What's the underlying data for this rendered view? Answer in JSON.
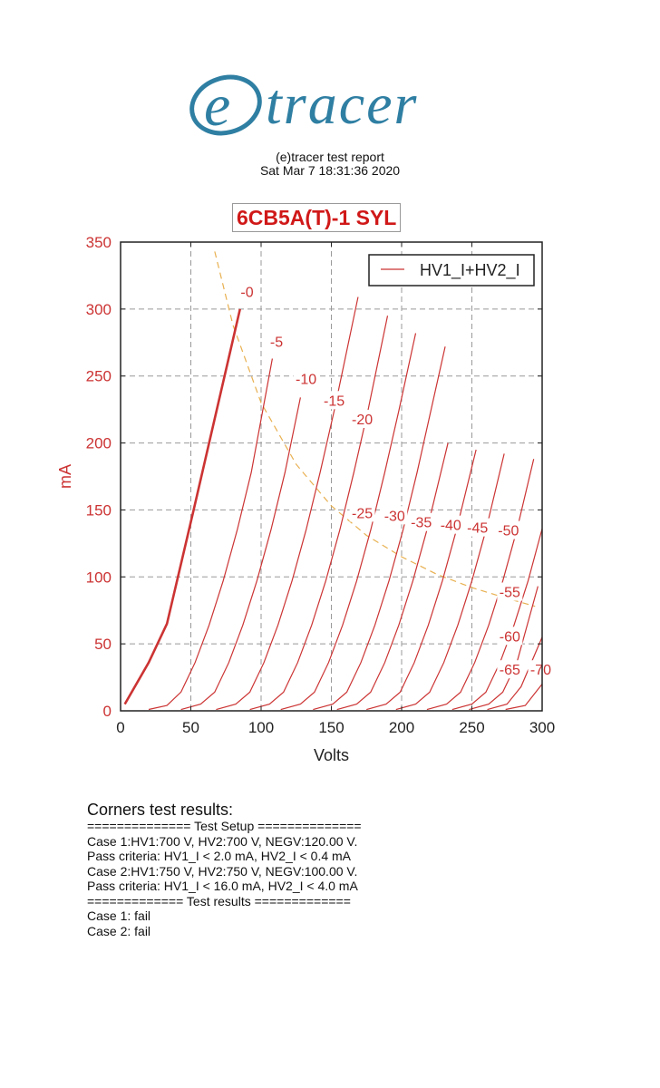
{
  "logo": {
    "text": "(e)tracer",
    "color": "#2f7fa3"
  },
  "header": {
    "line1": "(e)tracer test report",
    "line2": "Sat Mar 7 18:31:36 2020"
  },
  "tube_name": "6CB5A(T)-1 SYL",
  "chart_data": {
    "type": "line",
    "title": "6CB5A(T)-1 SYL",
    "xlabel": "Volts",
    "ylabel": "mA",
    "xlim": [
      0,
      300
    ],
    "ylim": [
      0,
      350
    ],
    "xticks": [
      0,
      50,
      100,
      150,
      200,
      250,
      300
    ],
    "yticks": [
      0,
      50,
      100,
      150,
      200,
      250,
      300,
      350
    ],
    "grid": true,
    "legend": {
      "placement": "top-right",
      "entries": [
        "HV1_I+HV2_I"
      ]
    },
    "colors": {
      "curve": "#cc3333",
      "power_limit": "#e8b050",
      "tick_labels": "#cc3333",
      "grid": "#999999"
    },
    "series": [
      {
        "label": "-0",
        "bold": true,
        "label_at": [
          90,
          313
        ],
        "points": [
          [
            3,
            5
          ],
          [
            20,
            36
          ],
          [
            33,
            65
          ],
          [
            52,
            150
          ],
          [
            85,
            300
          ]
        ]
      },
      {
        "label": "-5",
        "label_at": [
          111,
          276
        ],
        "points": [
          [
            20,
            1
          ],
          [
            33,
            4
          ],
          [
            43,
            14
          ],
          [
            53,
            36
          ],
          [
            63,
            64
          ],
          [
            73,
            97
          ],
          [
            83,
            135
          ],
          [
            93,
            178
          ],
          [
            108,
            263
          ]
        ]
      },
      {
        "label": "-10",
        "label_at": [
          132,
          248
        ],
        "points": [
          [
            43,
            1
          ],
          [
            57,
            5
          ],
          [
            67,
            14
          ],
          [
            77,
            36
          ],
          [
            87,
            64
          ],
          [
            97,
            97
          ],
          [
            107,
            135
          ],
          [
            117,
            178
          ],
          [
            128,
            234
          ]
        ]
      },
      {
        "label": "-15",
        "label_at": [
          152,
          232
        ],
        "points": [
          [
            68,
            1
          ],
          [
            82,
            5
          ],
          [
            92,
            14
          ],
          [
            102,
            36
          ],
          [
            112,
            64
          ],
          [
            122,
            97
          ],
          [
            132,
            135
          ],
          [
            142,
            178
          ],
          [
            152,
            224
          ],
          [
            169,
            309
          ]
        ]
      },
      {
        "label": "-20",
        "label_at": [
          172,
          218
        ],
        "points": [
          [
            92,
            1
          ],
          [
            106,
            5
          ],
          [
            116,
            14
          ],
          [
            126,
            36
          ],
          [
            136,
            64
          ],
          [
            146,
            97
          ],
          [
            156,
            135
          ],
          [
            166,
            178
          ],
          [
            176,
            224
          ],
          [
            190,
            295
          ]
        ]
      },
      {
        "label": "-25",
        "label_at": [
          172,
          148
        ],
        "points": [
          [
            114,
            1
          ],
          [
            128,
            5
          ],
          [
            138,
            14
          ],
          [
            148,
            36
          ],
          [
            158,
            64
          ],
          [
            168,
            97
          ],
          [
            178,
            135
          ],
          [
            188,
            178
          ],
          [
            198,
            224
          ],
          [
            210,
            282
          ]
        ]
      },
      {
        "label": "-30",
        "label_at": [
          195,
          146
        ],
        "points": [
          [
            137,
            1
          ],
          [
            151,
            5
          ],
          [
            161,
            14
          ],
          [
            171,
            36
          ],
          [
            181,
            64
          ],
          [
            191,
            97
          ],
          [
            201,
            135
          ],
          [
            211,
            178
          ],
          [
            231,
            272
          ]
        ]
      },
      {
        "label": "-35",
        "label_at": [
          214,
          141
        ],
        "points": [
          [
            154,
            1
          ],
          [
            168,
            5
          ],
          [
            178,
            14
          ],
          [
            188,
            36
          ],
          [
            198,
            64
          ],
          [
            208,
            97
          ],
          [
            218,
            135
          ],
          [
            233,
            200
          ]
        ]
      },
      {
        "label": "-40",
        "label_at": [
          235,
          139
        ],
        "points": [
          [
            175,
            1
          ],
          [
            189,
            5
          ],
          [
            199,
            14
          ],
          [
            209,
            36
          ],
          [
            219,
            64
          ],
          [
            229,
            97
          ],
          [
            239,
            135
          ],
          [
            253,
            195
          ]
        ]
      },
      {
        "label": "-45",
        "label_at": [
          254,
          137
        ],
        "points": [
          [
            196,
            1
          ],
          [
            210,
            5
          ],
          [
            220,
            14
          ],
          [
            230,
            36
          ],
          [
            240,
            64
          ],
          [
            250,
            97
          ],
          [
            260,
            135
          ],
          [
            273,
            192
          ]
        ]
      },
      {
        "label": "-50",
        "label_at": [
          276,
          135
        ],
        "points": [
          [
            218,
            1
          ],
          [
            232,
            5
          ],
          [
            242,
            14
          ],
          [
            252,
            36
          ],
          [
            262,
            64
          ],
          [
            272,
            97
          ],
          [
            282,
            135
          ],
          [
            294,
            188
          ]
        ]
      },
      {
        "label": "-55",
        "label_at": [
          277,
          89
        ],
        "points": [
          [
            236,
            1
          ],
          [
            250,
            5
          ],
          [
            260,
            14
          ],
          [
            270,
            36
          ],
          [
            280,
            64
          ],
          [
            290,
            97
          ],
          [
            300,
            136
          ]
        ]
      },
      {
        "label": "-60",
        "label_at": [
          277,
          56
        ],
        "points": [
          [
            248,
            1
          ],
          [
            262,
            5
          ],
          [
            272,
            14
          ],
          [
            282,
            36
          ],
          [
            297,
            93
          ]
        ]
      },
      {
        "label": "-65",
        "label_at": [
          277,
          31
        ],
        "points": [
          [
            261,
            1
          ],
          [
            275,
            5
          ],
          [
            285,
            18
          ],
          [
            300,
            55
          ]
        ]
      },
      {
        "label": "-70",
        "label_at": [
          299,
          31
        ],
        "points": [
          [
            274,
            1
          ],
          [
            288,
            4
          ],
          [
            300,
            20
          ]
        ]
      }
    ],
    "power_limit_curve": {
      "style": "dashed",
      "points": [
        [
          67,
          343
        ],
        [
          80,
          288
        ],
        [
          100,
          230
        ],
        [
          125,
          184
        ],
        [
          150,
          153
        ],
        [
          175,
          131
        ],
        [
          200,
          115
        ],
        [
          225,
          102
        ],
        [
          250,
          92
        ],
        [
          275,
          84
        ],
        [
          295,
          78
        ]
      ]
    }
  },
  "results": {
    "title": "Corners test results:",
    "lines": [
      "============== Test Setup ==============",
      "Case 1:HV1:700 V, HV2:700 V, NEGV:120.00 V.",
      "Pass criteria: HV1_I < 2.0 mA, HV2_I < 0.4 mA",
      "Case 2:HV1:750 V, HV2:750 V, NEGV:100.00 V.",
      "Pass criteria: HV1_I < 16.0 mA, HV2_I < 4.0 mA",
      "============= Test results =============",
      "Case 1: fail",
      "Case 2: fail"
    ]
  }
}
